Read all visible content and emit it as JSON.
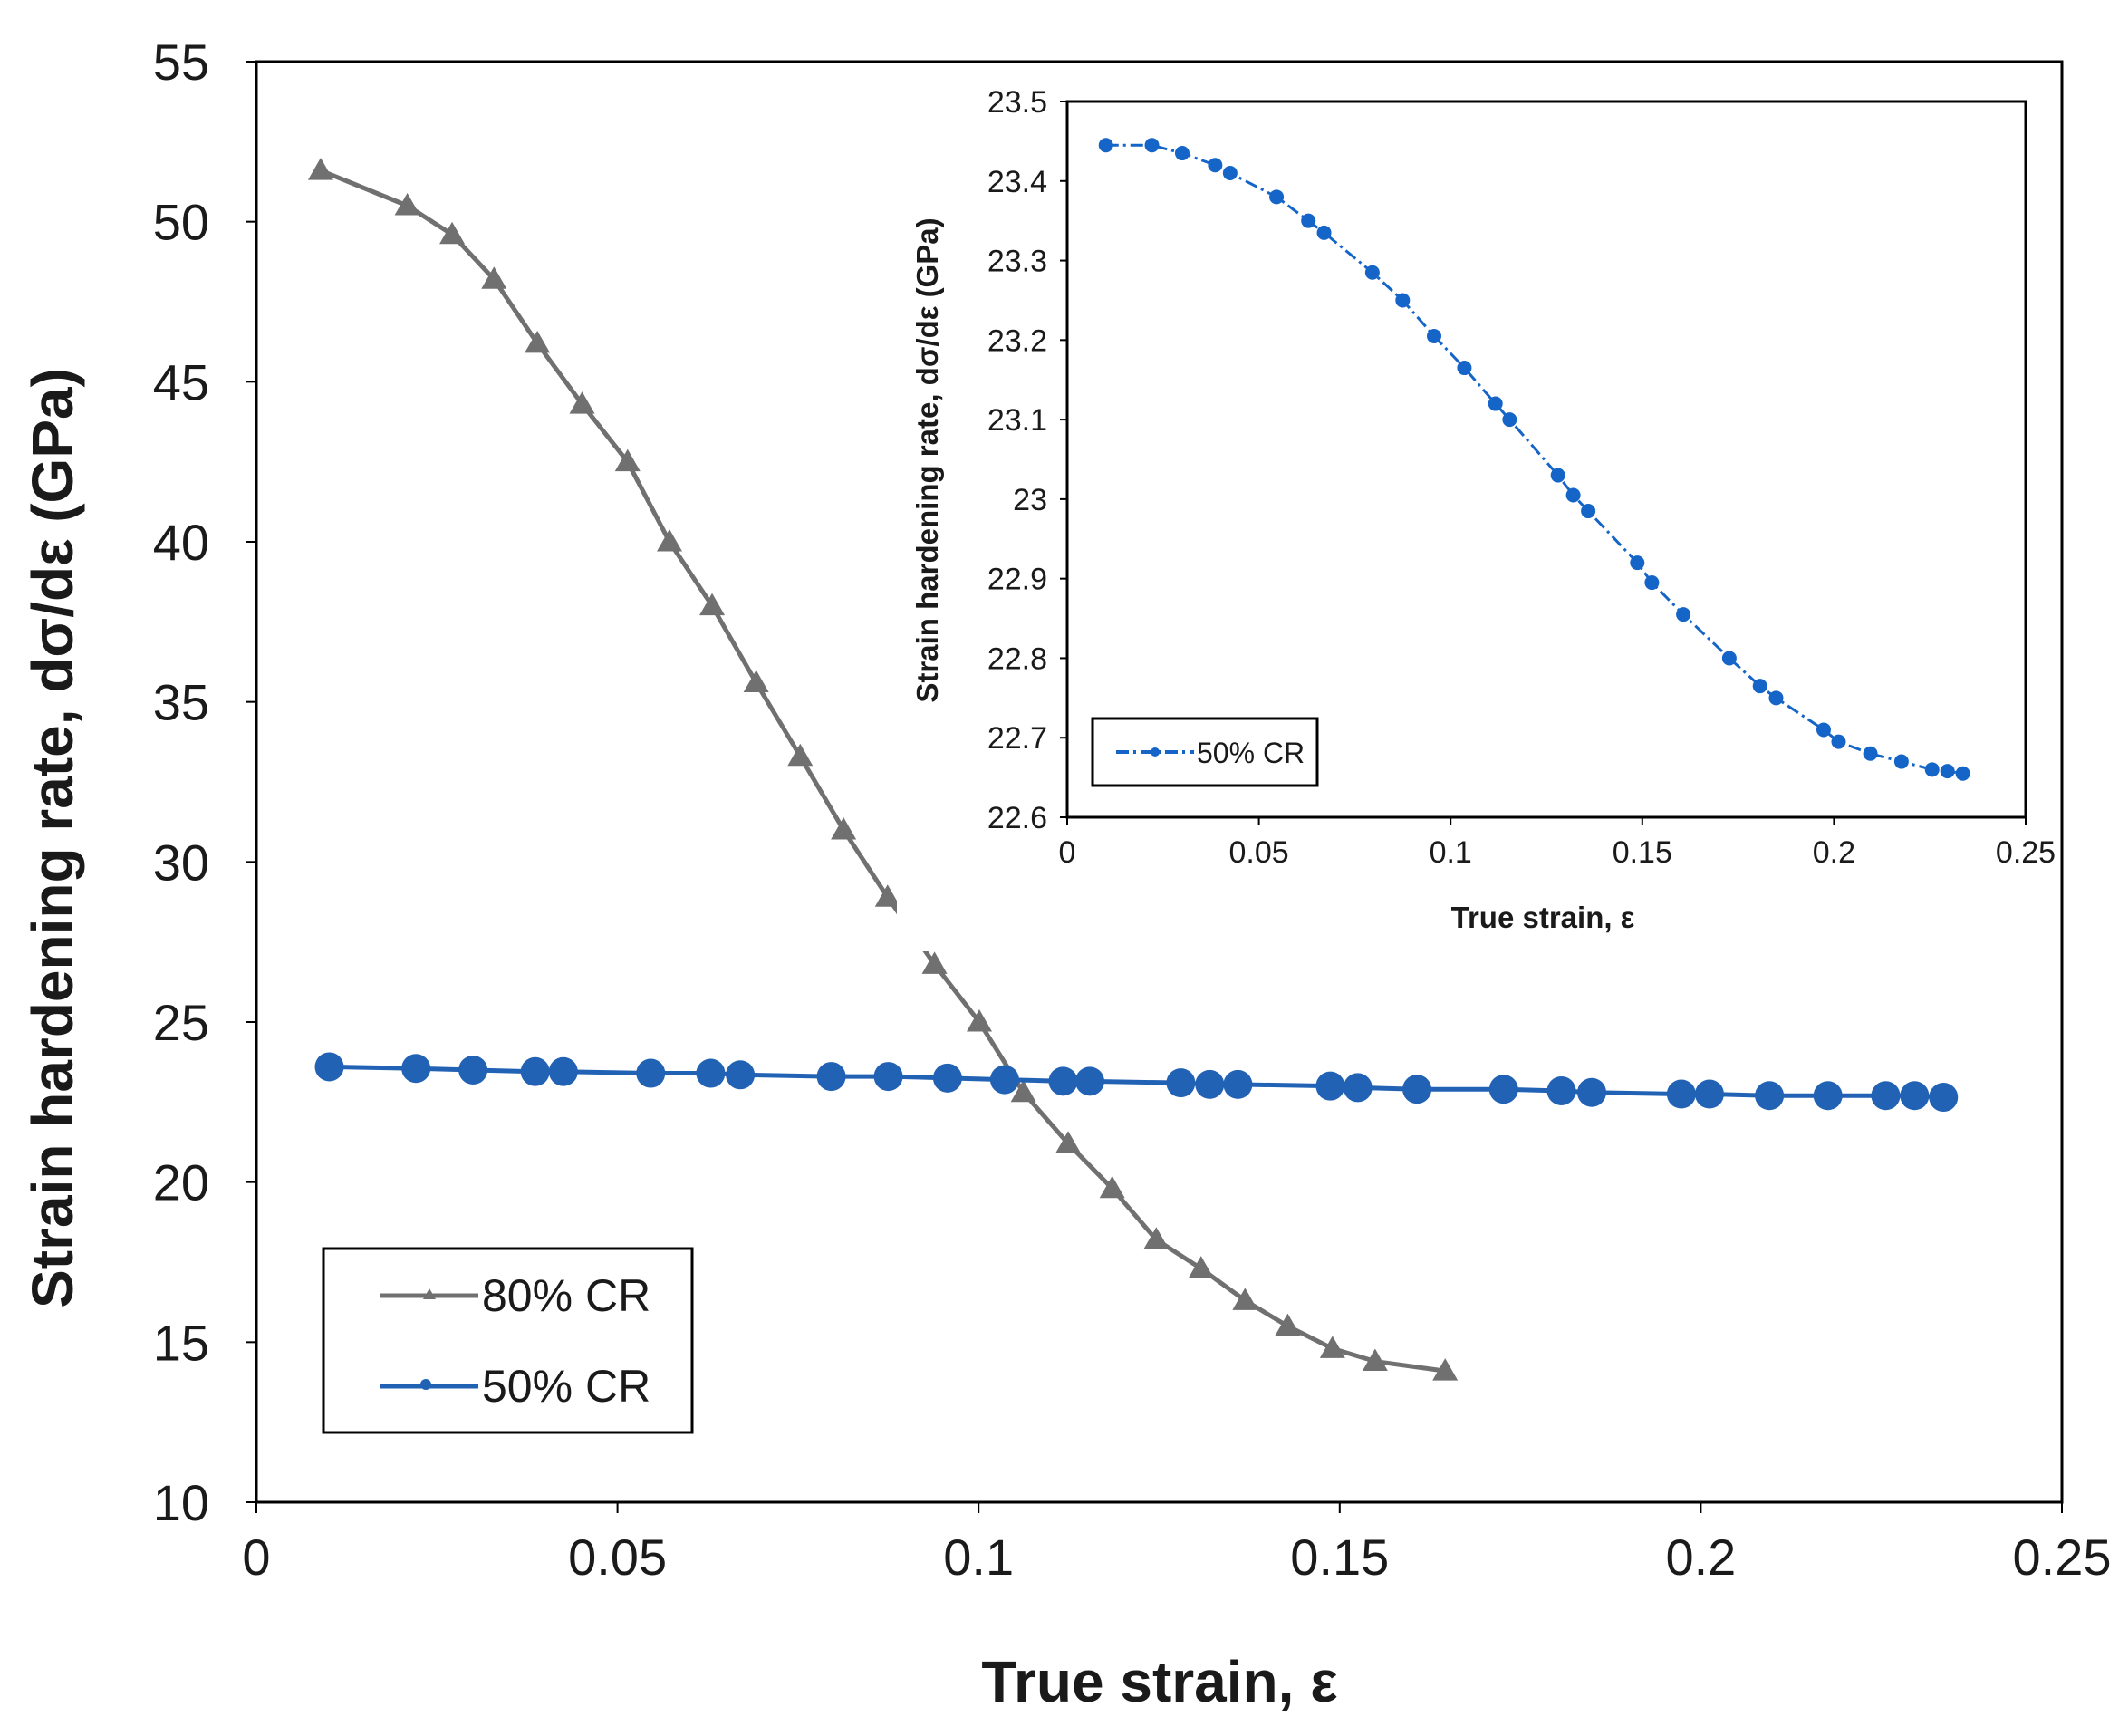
{
  "chart_data": [
    {
      "type": "line",
      "role": "main",
      "title": "",
      "xlabel": "True strain, ε",
      "ylabel": "Strain hardening rate, dσ/dε (GPa)",
      "xlim": [
        0,
        0.25
      ],
      "ylim": [
        10,
        55
      ],
      "xticks": [
        0,
        0.05,
        0.1,
        0.15,
        0.2,
        0.25
      ],
      "xtick_labels": [
        "0",
        "0.05",
        "0.1",
        "0.15",
        "0.2",
        "0.25"
      ],
      "yticks": [
        10,
        15,
        20,
        25,
        30,
        35,
        40,
        45,
        50,
        55
      ],
      "ytick_labels": [
        "10",
        "15",
        "20",
        "25",
        "30",
        "35",
        "40",
        "45",
        "50",
        "55"
      ],
      "legend_position": "bottom-left",
      "series": [
        {
          "name": "80% CR",
          "color": "#707070",
          "marker": "triangle",
          "x": [
            0.0089,
            0.0209,
            0.0271,
            0.0329,
            0.0389,
            0.0451,
            0.0514,
            0.0572,
            0.0631,
            0.0692,
            0.0753,
            0.0813,
            0.0874,
            0.0939,
            0.1001,
            0.1062,
            0.1124,
            0.1185,
            0.1246,
            0.1308,
            0.1369,
            0.1428,
            0.149,
            0.1549,
            0.1646
          ],
          "y": [
            51.6,
            50.5,
            49.6,
            48.2,
            46.2,
            44.3,
            42.5,
            40.0,
            38.0,
            35.6,
            33.3,
            31.0,
            28.9,
            26.8,
            25.0,
            22.8,
            21.2,
            19.8,
            18.2,
            17.3,
            16.3,
            15.5,
            14.8,
            14.4,
            14.1
          ]
        },
        {
          "name": "50% CR",
          "color": "#2262b5",
          "marker": "circle",
          "x": [
            0.0101,
            0.0221,
            0.03,
            0.0386,
            0.0425,
            0.0546,
            0.0629,
            0.067,
            0.0796,
            0.0875,
            0.0957,
            0.1036,
            0.1117,
            0.1154,
            0.128,
            0.132,
            0.1359,
            0.1487,
            0.1525,
            0.1607,
            0.1727,
            0.1807,
            0.1849,
            0.1973,
            0.2012,
            0.2095,
            0.2176,
            0.2256,
            0.2296,
            0.2336
          ],
          "y": [
            23.6,
            23.55,
            23.5,
            23.45,
            23.45,
            23.4,
            23.4,
            23.35,
            23.3,
            23.3,
            23.25,
            23.2,
            23.15,
            23.15,
            23.1,
            23.05,
            23.05,
            23.0,
            22.95,
            22.9,
            22.9,
            22.85,
            22.8,
            22.75,
            22.75,
            22.7,
            22.7,
            22.7,
            22.7,
            22.65
          ]
        }
      ]
    },
    {
      "type": "line",
      "role": "inset",
      "title": "",
      "xlabel": "True strain, ε",
      "ylabel": "Strain hardening rate, dσ/dε (GPa)",
      "xlim": [
        0,
        0.25
      ],
      "ylim": [
        22.6,
        23.5
      ],
      "xticks": [
        0,
        0.05,
        0.1,
        0.15,
        0.2,
        0.25
      ],
      "xtick_labels": [
        "0",
        "0.05",
        "0.1",
        "0.15",
        "0.2",
        "0.25"
      ],
      "yticks": [
        22.6,
        22.7,
        22.8,
        22.9,
        23.0,
        23.1,
        23.2,
        23.3,
        23.4,
        23.5
      ],
      "ytick_labels": [
        "22.6",
        "22.7",
        "22.8",
        "22.9",
        "23",
        "23.1",
        "23.2",
        "23.3",
        "23.4",
        "23.5"
      ],
      "legend_position": "bottom-left",
      "series": [
        {
          "name": "50% CR",
          "color": "#1565c8",
          "marker": "circle",
          "x": [
            0.0101,
            0.0221,
            0.03,
            0.0386,
            0.0425,
            0.0546,
            0.0629,
            0.067,
            0.0796,
            0.0875,
            0.0957,
            0.1036,
            0.1117,
            0.1154,
            0.128,
            0.132,
            0.1359,
            0.1487,
            0.1525,
            0.1607,
            0.1727,
            0.1807,
            0.1849,
            0.1973,
            0.2012,
            0.2095,
            0.2176,
            0.2256,
            0.2296,
            0.2336
          ],
          "y": [
            23.445,
            23.445,
            23.435,
            23.42,
            23.41,
            23.38,
            23.35,
            23.335,
            23.285,
            23.25,
            23.205,
            23.165,
            23.12,
            23.1,
            23.03,
            23.005,
            22.985,
            22.92,
            22.895,
            22.855,
            22.8,
            22.765,
            22.75,
            22.71,
            22.695,
            22.68,
            22.67,
            22.66,
            22.658,
            22.655
          ]
        }
      ]
    }
  ]
}
